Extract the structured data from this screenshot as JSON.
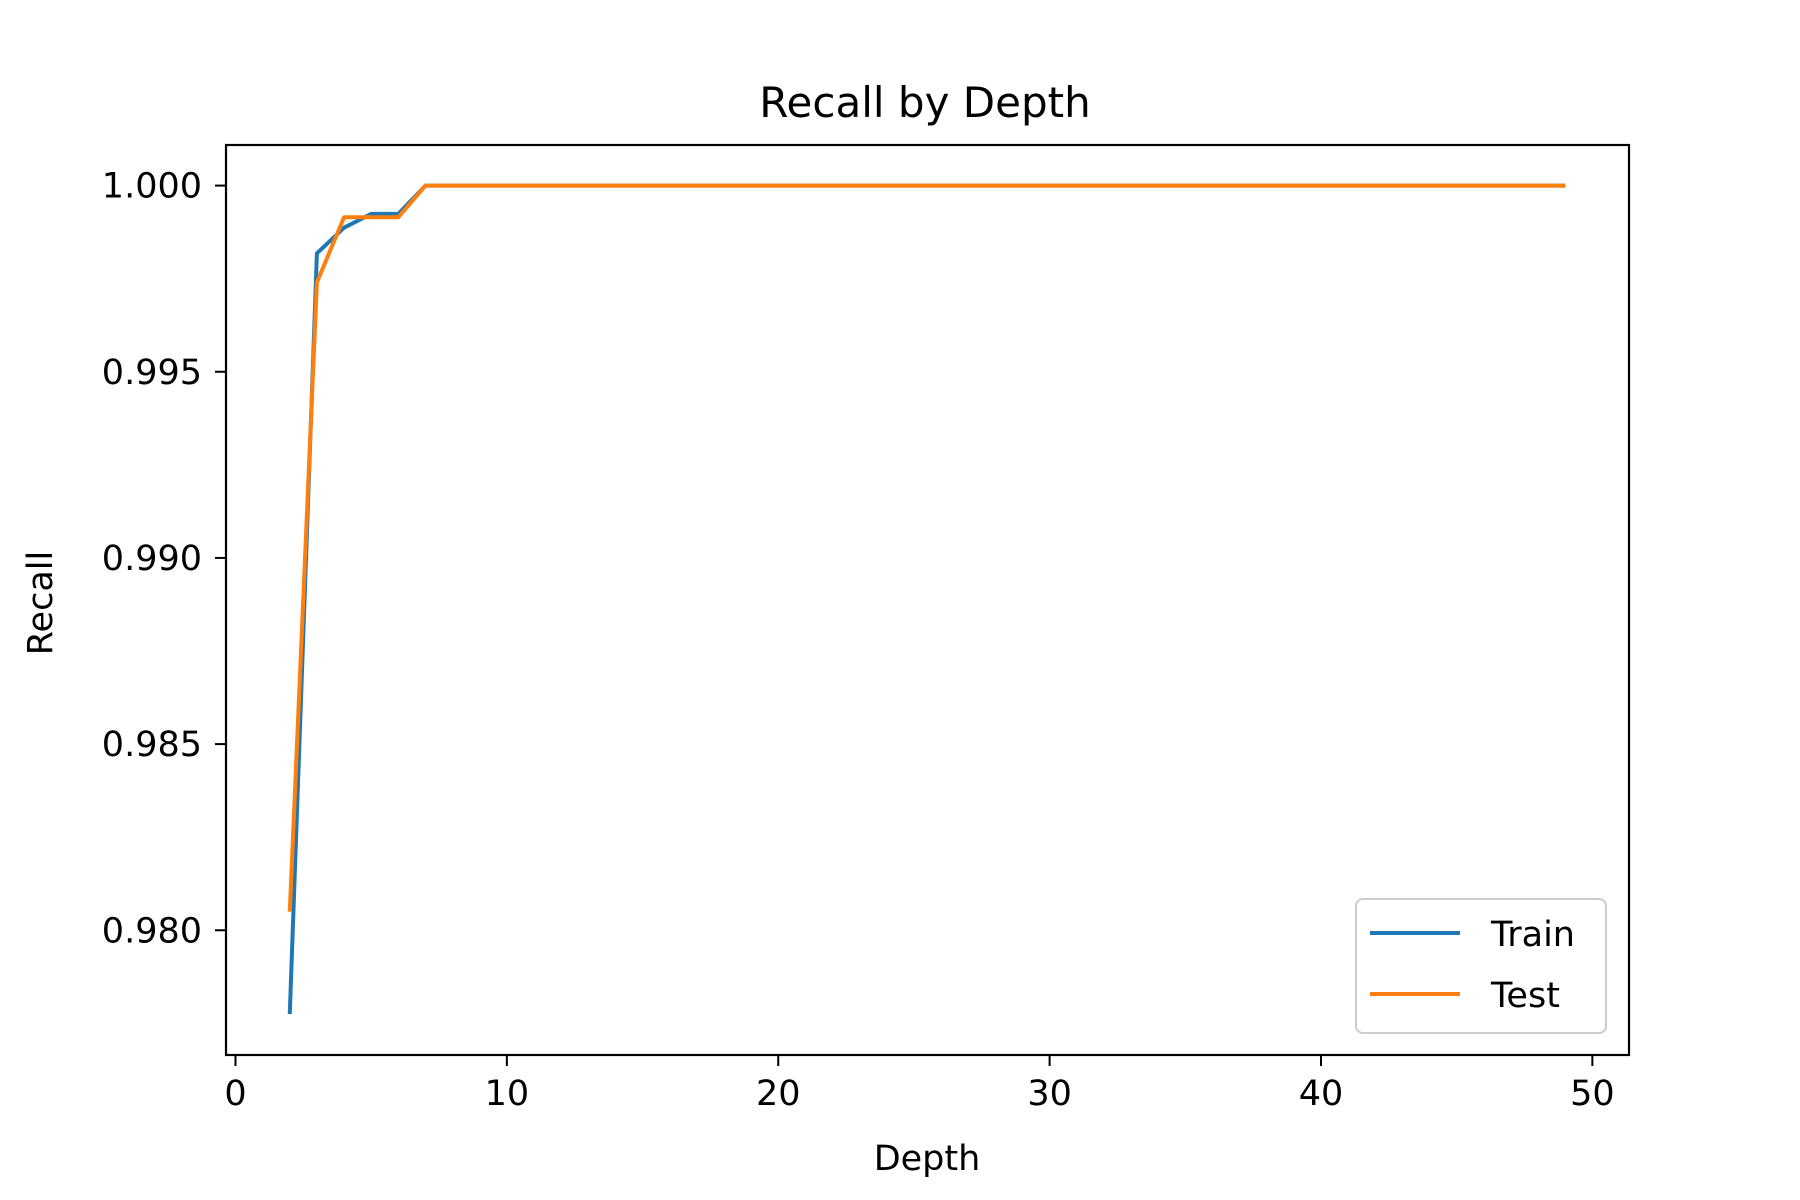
{
  "chart_data": {
    "type": "line",
    "title": "Recall by Depth",
    "xlabel": "Depth",
    "ylabel": "Recall",
    "xlim": [
      -0.35,
      51.35
    ],
    "ylim": [
      0.97665,
      1.00109
    ],
    "xticks": [
      0,
      10,
      20,
      30,
      40,
      50
    ],
    "xtick_labels": [
      "0",
      "10",
      "20",
      "30",
      "40",
      "50"
    ],
    "yticks": [
      0.98,
      0.985,
      0.99,
      0.995,
      1.0
    ],
    "ytick_labels": [
      "0.980",
      "0.985",
      "0.990",
      "0.995",
      "1.000"
    ],
    "grid": false,
    "legend_position": "lower-right",
    "x": [
      2,
      3,
      4,
      5,
      6,
      7,
      8,
      9,
      10,
      11,
      12,
      13,
      14,
      15,
      16,
      17,
      18,
      19,
      20,
      21,
      22,
      23,
      24,
      25,
      26,
      27,
      28,
      29,
      30,
      31,
      32,
      33,
      34,
      35,
      36,
      37,
      38,
      39,
      40,
      41,
      42,
      43,
      44,
      45,
      46,
      47,
      48,
      49
    ],
    "series": [
      {
        "name": "Train",
        "color": "#1f77b4",
        "values": [
          0.97775,
          0.99818,
          0.99887,
          0.99924,
          0.99924,
          1.0,
          1.0,
          1.0,
          1.0,
          1.0,
          1.0,
          1.0,
          1.0,
          1.0,
          1.0,
          1.0,
          1.0,
          1.0,
          1.0,
          1.0,
          1.0,
          1.0,
          1.0,
          1.0,
          1.0,
          1.0,
          1.0,
          1.0,
          1.0,
          1.0,
          1.0,
          1.0,
          1.0,
          1.0,
          1.0,
          1.0,
          1.0,
          1.0,
          1.0,
          1.0,
          1.0,
          1.0,
          1.0,
          1.0,
          1.0,
          1.0,
          1.0,
          1.0
        ]
      },
      {
        "name": "Test",
        "color": "#ff7f0e",
        "values": [
          0.9805,
          0.9974,
          0.99915,
          0.99915,
          0.99915,
          1.0,
          1.0,
          1.0,
          1.0,
          1.0,
          1.0,
          1.0,
          1.0,
          1.0,
          1.0,
          1.0,
          1.0,
          1.0,
          1.0,
          1.0,
          1.0,
          1.0,
          1.0,
          1.0,
          1.0,
          1.0,
          1.0,
          1.0,
          1.0,
          1.0,
          1.0,
          1.0,
          1.0,
          1.0,
          1.0,
          1.0,
          1.0,
          1.0,
          1.0,
          1.0,
          1.0,
          1.0,
          1.0,
          1.0,
          1.0,
          1.0,
          1.0,
          1.0
        ]
      }
    ]
  }
}
